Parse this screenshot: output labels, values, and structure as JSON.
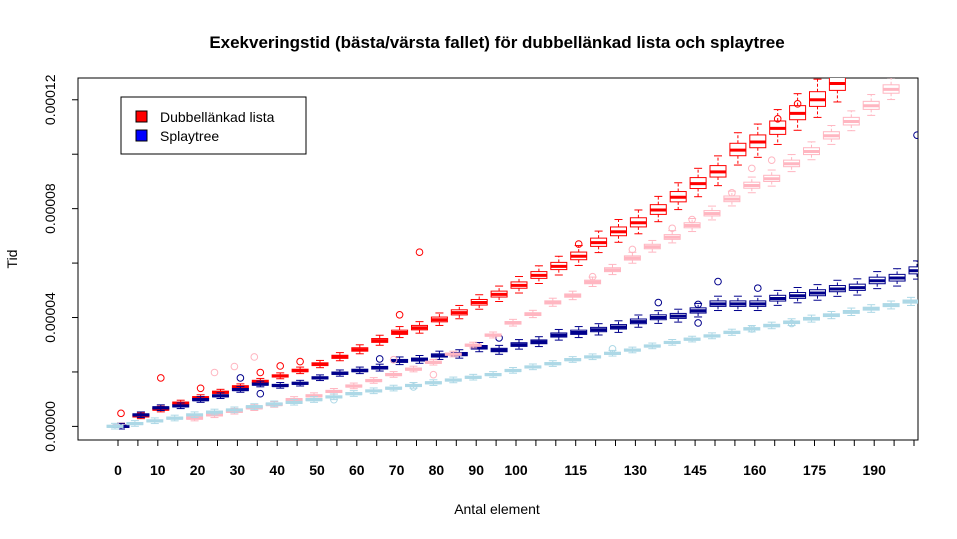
{
  "chart_data": {
    "type": "boxplot",
    "title": "Exekveringstid (bästa/värsta fallet) för dubbellänkad lista och splaytree",
    "xlabel": "Antal element",
    "ylabel": "Tid",
    "x": [
      0,
      5,
      10,
      15,
      20,
      25,
      30,
      35,
      40,
      45,
      50,
      55,
      60,
      65,
      70,
      75,
      80,
      85,
      90,
      95,
      100,
      105,
      110,
      115,
      120,
      125,
      130,
      135,
      140,
      145,
      150,
      155,
      160,
      165,
      170,
      175,
      180,
      185,
      190,
      195,
      200
    ],
    "x_tick_labels": [
      "0",
      "10",
      "20",
      "30",
      "40",
      "50",
      "60",
      "70",
      "80",
      "90",
      "100",
      "115",
      "130",
      "145",
      "160",
      "175",
      "190"
    ],
    "ylim": [
      -5e-06,
      0.000128
    ],
    "y_tick_labels": [
      "0.00000",
      "0.00004",
      "0.00008",
      "0.00012"
    ],
    "series": [
      {
        "name": "Dubbellänkad lista",
        "color": "#ff0000",
        "role": "worst",
        "medians": [
          0,
          3.8e-06,
          6.3e-06,
          8.5e-06,
          1.05e-05,
          1.25e-05,
          1.45e-05,
          1.65e-05,
          1.85e-05,
          2.05e-05,
          2.28e-05,
          2.55e-05,
          2.82e-05,
          3.15e-05,
          3.45e-05,
          3.62e-05,
          3.92e-05,
          4.18e-05,
          4.55e-05,
          4.85e-05,
          5.18e-05,
          5.55e-05,
          5.88e-05,
          6.25e-05,
          6.75e-05,
          7.15e-05,
          7.48e-05,
          7.95e-05,
          8.42e-05,
          8.92e-05,
          9.35e-05,
          0.0001015,
          0.0001045,
          0.0001095,
          0.000115,
          0.00012,
          0.000126,
          null,
          null,
          null,
          null
        ],
        "outliers": [
          [
            0,
            4.8e-06
          ],
          [
            10,
            1.78e-05
          ],
          [
            20,
            1.4e-05
          ],
          [
            35,
            1.98e-05
          ],
          [
            40,
            2.22e-05
          ],
          [
            45,
            2.38e-05
          ],
          [
            70,
            4.1e-05
          ],
          [
            75,
            6.4e-05
          ],
          [
            115,
            6.7e-05
          ],
          [
            170,
            0.0001185
          ],
          [
            165,
            0.000113
          ],
          [
            180,
            0.00013
          ]
        ]
      },
      {
        "name": "Splaytree",
        "color": "#00008b",
        "role": "worst",
        "medians": [
          0,
          4.2e-06,
          6.8e-06,
          7.5e-06,
          9.8e-06,
          1.12e-05,
          1.35e-05,
          1.55e-05,
          1.5e-05,
          1.58e-05,
          1.78e-05,
          1.95e-05,
          2.05e-05,
          2.15e-05,
          2.4e-05,
          2.45e-05,
          2.6e-05,
          2.65e-05,
          2.9e-05,
          2.8e-05,
          3e-05,
          3.1e-05,
          3.35e-05,
          3.45e-05,
          3.55e-05,
          3.65e-05,
          3.85e-05,
          4e-05,
          4.05e-05,
          4.25e-05,
          4.5e-05,
          4.5e-05,
          4.5e-05,
          4.7e-05,
          4.8e-05,
          4.9e-05,
          5.05e-05,
          5.1e-05,
          5.35e-05,
          5.45e-05,
          5.72e-05
        ],
        "outliers": [
          [
            30,
            1.78e-05
          ],
          [
            35,
            1.2e-05
          ],
          [
            65,
            2.48e-05
          ],
          [
            95,
            3.25e-05
          ],
          [
            135,
            4.55e-05
          ],
          [
            145,
            3.8e-05
          ],
          [
            145,
            4.48e-05
          ],
          [
            150,
            5.32e-05
          ],
          [
            160,
            5.08e-05
          ],
          [
            200,
            0.000107
          ]
        ]
      },
      {
        "name": "Dubbellänkad lista (bästa)",
        "color": "#ffb6c1",
        "role": "best",
        "medians": [
          null,
          null,
          null,
          null,
          3e-06,
          4.2e-06,
          5.5e-06,
          6.8e-06,
          8e-06,
          9.8e-06,
          1.12e-05,
          1.28e-05,
          1.48e-05,
          1.68e-05,
          1.9e-05,
          2.1e-05,
          2.35e-05,
          2.65e-05,
          2.98e-05,
          3.35e-05,
          3.8e-05,
          4.12e-05,
          4.55e-05,
          4.8e-05,
          5.3e-05,
          5.75e-05,
          6.18e-05,
          6.6e-05,
          6.95e-05,
          7.38e-05,
          7.82e-05,
          8.35e-05,
          8.85e-05,
          9.1e-05,
          9.65e-05,
          0.000101,
          0.0001068,
          0.000112,
          0.0001178,
          0.0001238,
          null
        ],
        "outliers": [
          [
            25,
            1.98e-05
          ],
          [
            30,
            2.2e-05
          ],
          [
            35,
            2.55e-05
          ],
          [
            70,
            2.45e-05
          ],
          [
            80,
            1.9e-05
          ],
          [
            120,
            5.5e-05
          ],
          [
            130,
            6.5e-05
          ],
          [
            140,
            7.28e-05
          ],
          [
            145,
            7.6e-05
          ],
          [
            155,
            8.58e-05
          ],
          [
            160,
            9.48e-05
          ],
          [
            165,
            9.78e-05
          ]
        ]
      },
      {
        "name": "Splaytree (bästa)",
        "color": "#add8e6",
        "role": "best",
        "medians": [
          0,
          1e-06,
          2e-06,
          3e-06,
          4.2e-06,
          5.2e-06,
          6e-06,
          7.2e-06,
          8.2e-06,
          8.8e-06,
          9.8e-06,
          1.08e-05,
          1.2e-05,
          1.3e-05,
          1.4e-05,
          1.5e-05,
          1.6e-05,
          1.7e-05,
          1.8e-05,
          1.9e-05,
          2.05e-05,
          2.18e-05,
          2.3e-05,
          2.45e-05,
          2.55e-05,
          2.68e-05,
          2.8e-05,
          2.95e-05,
          3.08e-05,
          3.2e-05,
          3.32e-05,
          3.45e-05,
          3.58e-05,
          3.7e-05,
          3.82e-05,
          3.95e-05,
          4.08e-05,
          4.2e-05,
          4.32e-05,
          4.45e-05,
          4.58e-05
        ],
        "outliers": [
          [
            55,
            9.8e-06
          ],
          [
            75,
            1.45e-05
          ],
          [
            125,
            2.85e-05
          ],
          [
            160,
            3.58e-05
          ],
          [
            170,
            3.78e-05
          ]
        ]
      }
    ],
    "legend": {
      "position": "top-left",
      "entries": [
        {
          "label": "Dubbellänkad lista",
          "color": "#ff0000"
        },
        {
          "label": "Splaytree",
          "color": "#0000ff"
        }
      ]
    },
    "grid": false
  }
}
